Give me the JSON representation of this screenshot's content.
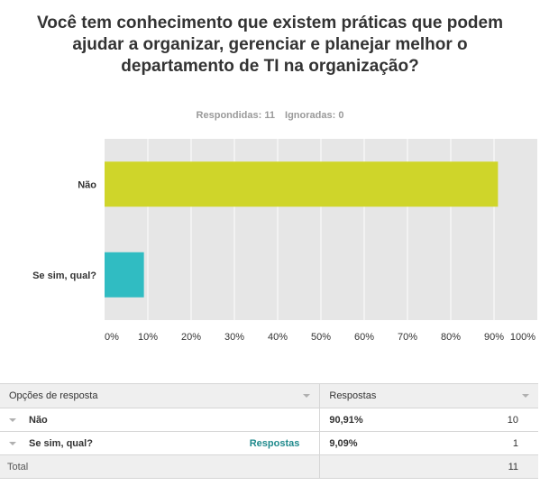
{
  "survey": {
    "question": "Você tem conhecimento que existem práticas que podem ajudar a organizar, gerenciar e planejar melhor o departamento de TI na organização?",
    "answered_label": "Respondidas: 11",
    "skipped_label": "Ignoradas: 0"
  },
  "chart_data": {
    "type": "bar",
    "orientation": "horizontal",
    "categories": [
      "Não",
      "Se sim, qual?"
    ],
    "values": [
      90.91,
      9.09
    ],
    "unit": "%",
    "xlim": [
      0,
      100
    ],
    "x_ticks": [
      "0%",
      "10%",
      "20%",
      "30%",
      "40%",
      "50%",
      "60%",
      "70%",
      "80%",
      "90%",
      "100%"
    ],
    "colors": [
      "#cfd52a",
      "#30bcc2"
    ],
    "background": "#e6e6e6",
    "grid": true,
    "legend": false
  },
  "table": {
    "header": {
      "options_label": "Opções de resposta",
      "responses_label": "Respostas"
    },
    "rows": [
      {
        "label": "Não",
        "percent": "90,91%",
        "count": "10",
        "link": ""
      },
      {
        "label": "Se sim, qual?",
        "percent": "9,09%",
        "count": "1",
        "link": "Respostas"
      }
    ],
    "total": {
      "label": "Total",
      "count": "11"
    }
  }
}
